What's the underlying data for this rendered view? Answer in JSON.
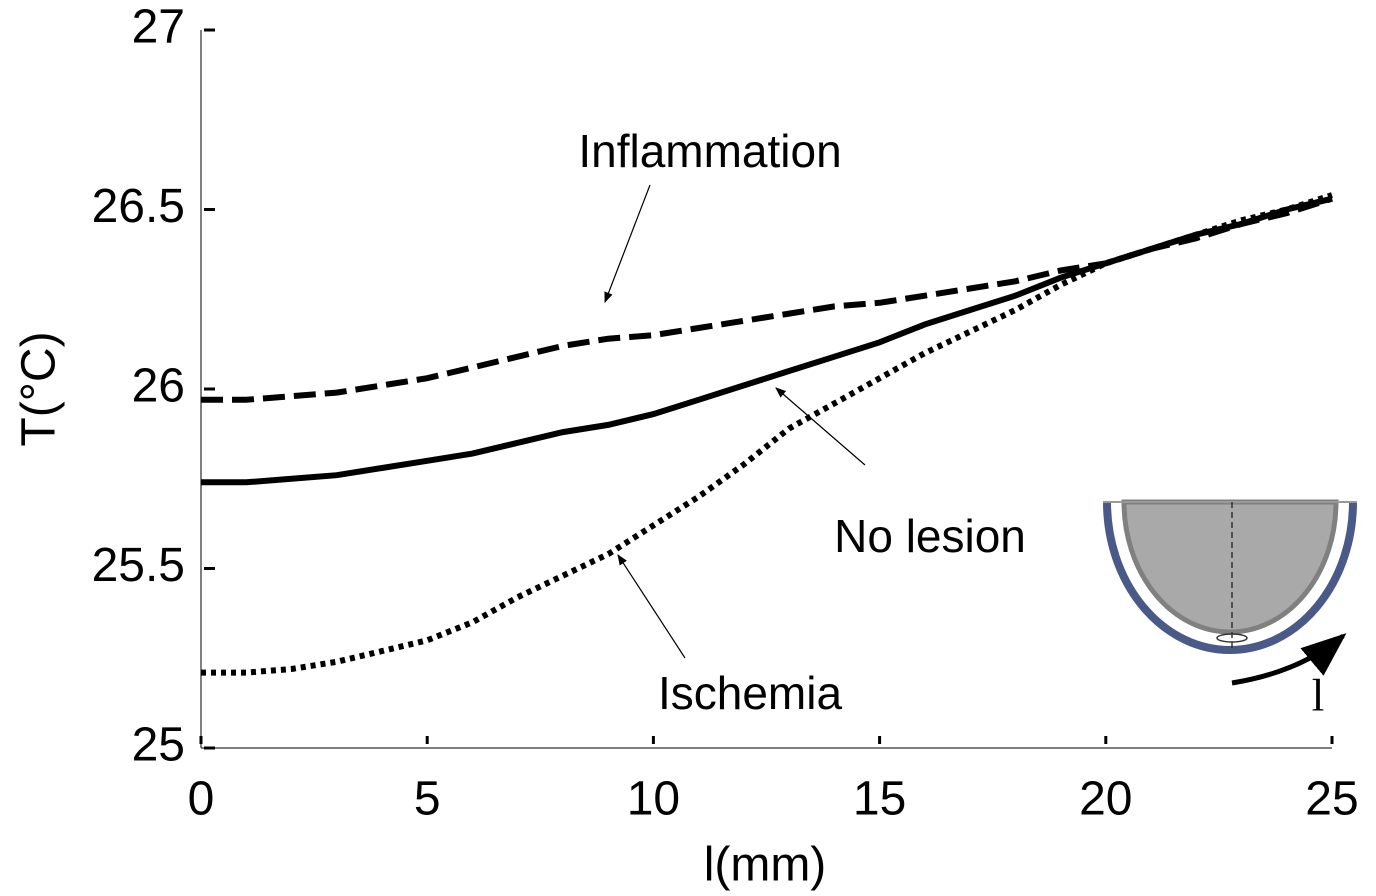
{
  "chart_data": {
    "type": "line",
    "x_label": "l(mm)",
    "y_label": "T(°C)",
    "x": [
      0,
      1,
      2,
      3,
      4,
      5,
      6,
      7,
      8,
      9,
      10,
      11,
      12,
      13,
      14,
      15,
      16,
      17,
      18,
      19,
      20,
      21,
      22,
      23,
      24,
      25
    ],
    "series": [
      {
        "name": "Inflammation",
        "color": "#000000",
        "style": "dashed",
        "values": [
          25.97,
          25.97,
          25.98,
          25.99,
          26.01,
          26.03,
          26.06,
          26.09,
          26.12,
          26.14,
          26.15,
          26.17,
          26.19,
          26.21,
          26.23,
          26.24,
          26.26,
          26.28,
          26.3,
          26.33,
          26.35,
          26.39,
          26.42,
          26.46,
          26.49,
          26.53
        ]
      },
      {
        "name": "No lesion",
        "color": "#000000",
        "style": "solid",
        "values": [
          25.74,
          25.74,
          25.75,
          25.76,
          25.78,
          25.8,
          25.82,
          25.85,
          25.88,
          25.9,
          25.93,
          25.97,
          26.01,
          26.05,
          26.09,
          26.13,
          26.18,
          26.22,
          26.26,
          26.31,
          26.35,
          26.39,
          26.43,
          26.46,
          26.5,
          26.53
        ]
      },
      {
        "name": "Ischemia",
        "color": "#000000",
        "style": "dotted",
        "values": [
          25.21,
          25.21,
          25.22,
          25.24,
          25.27,
          25.3,
          25.35,
          25.42,
          25.48,
          25.54,
          25.62,
          25.7,
          25.79,
          25.89,
          25.96,
          26.03,
          26.1,
          26.16,
          26.22,
          26.29,
          26.35,
          26.39,
          26.43,
          26.47,
          26.5,
          26.54
        ]
      }
    ],
    "xlim": [
      0,
      25
    ],
    "xticks": [
      0,
      5,
      10,
      15,
      20,
      25
    ],
    "ylim": [
      25,
      27
    ],
    "yticks": [
      25,
      25.5,
      26,
      26.5,
      27
    ],
    "grid": false,
    "inset_label": "l"
  }
}
